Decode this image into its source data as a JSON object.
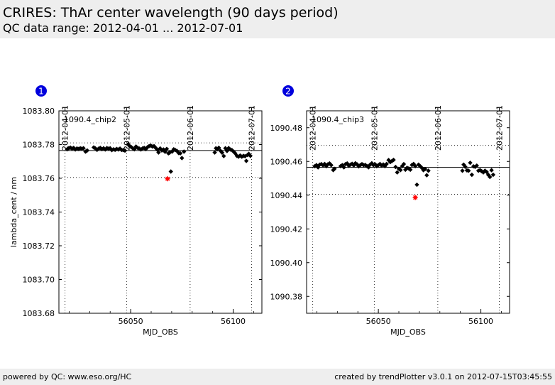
{
  "header": {
    "title": "CRIRES: ThAr center wavelength (90 days period)",
    "subtitle": "QC data range: 2012-04-01 ... 2012-07-01"
  },
  "footer": {
    "left": "powered by QC: www.eso.org/HC",
    "right": "created by trendPlotter v3.0.1 on 2012-07-15T03:45:55"
  },
  "colors": {
    "data_point": "#000000",
    "outlier": "#ff0000",
    "badge": "#0000dd",
    "badge_text": "#ffffff"
  },
  "chart_data": [
    {
      "type": "scatter",
      "badge": "1",
      "label": "1090.4_chip2",
      "xlabel": "MJD_OBS",
      "ylabel": "lambda_cent / nm",
      "xlim": [
        56015,
        56114
      ],
      "ylim": [
        1083.68,
        1083.8
      ],
      "x_ticks": [
        56050,
        56100
      ],
      "y_ticks": [
        1083.68,
        1083.7,
        1083.72,
        1083.74,
        1083.76,
        1083.78,
        1083.8
      ],
      "y_tick_labels": [
        "1083.68",
        "1083.70",
        "1083.72",
        "1083.74",
        "1083.76",
        "1083.78",
        "1083.80"
      ],
      "date_ticks": [
        {
          "mjd": 56018,
          "label": "2012-04-01"
        },
        {
          "mjd": 56048,
          "label": "2012-05-01"
        },
        {
          "mjd": 56079,
          "label": "2012-06-01"
        },
        {
          "mjd": 56109,
          "label": "2012-07-01"
        }
      ],
      "reference_line": 1083.7765,
      "threshold_lines": [
        1083.781,
        1083.7605
      ],
      "outliers": [
        {
          "x": 56068.0,
          "y": 1083.7597
        }
      ],
      "points": [
        [
          56019.0,
          1083.7772
        ],
        [
          56019.8,
          1083.7778
        ],
        [
          56020.6,
          1083.7782
        ],
        [
          56021.4,
          1083.7776
        ],
        [
          56022.2,
          1083.778
        ],
        [
          56023.0,
          1083.7771
        ],
        [
          56023.8,
          1083.7777
        ],
        [
          56024.6,
          1083.7774
        ],
        [
          56025.4,
          1083.7778
        ],
        [
          56026.2,
          1083.7776
        ],
        [
          56027.0,
          1083.7778
        ],
        [
          56028.0,
          1083.7758
        ],
        [
          56028.8,
          1083.7765
        ],
        [
          56032.0,
          1083.7783
        ],
        [
          56032.8,
          1083.7777
        ],
        [
          56033.6,
          1083.7769
        ],
        [
          56034.4,
          1083.7776
        ],
        [
          56035.2,
          1083.778
        ],
        [
          56036.0,
          1083.7773
        ],
        [
          56036.8,
          1083.7778
        ],
        [
          56037.6,
          1083.7771
        ],
        [
          56038.4,
          1083.7779
        ],
        [
          56039.2,
          1083.7776
        ],
        [
          56040.0,
          1083.7778
        ],
        [
          56040.8,
          1083.7767
        ],
        [
          56041.6,
          1083.7772
        ],
        [
          56042.4,
          1083.7769
        ],
        [
          56043.2,
          1083.7774
        ],
        [
          56044.0,
          1083.7771
        ],
        [
          56044.8,
          1083.7776
        ],
        [
          56045.6,
          1083.7768
        ],
        [
          56046.4,
          1083.7767
        ],
        [
          56047.2,
          1083.7764
        ],
        [
          56048.8,
          1083.7802
        ],
        [
          56049.4,
          1083.7792
        ],
        [
          56050.2,
          1083.7786
        ],
        [
          56051.0,
          1083.7778
        ],
        [
          56051.8,
          1083.7772
        ],
        [
          56052.6,
          1083.7788
        ],
        [
          56053.4,
          1083.7781
        ],
        [
          56054.2,
          1083.7776
        ],
        [
          56055.0,
          1083.7771
        ],
        [
          56055.8,
          1083.7777
        ],
        [
          56056.6,
          1083.778
        ],
        [
          56057.4,
          1083.7773
        ],
        [
          56058.2,
          1083.7784
        ],
        [
          56059.0,
          1083.7791
        ],
        [
          56059.8,
          1083.7794
        ],
        [
          56060.6,
          1083.7788
        ],
        [
          56061.4,
          1083.7791
        ],
        [
          56062.2,
          1083.778
        ],
        [
          56063.0,
          1083.7769
        ],
        [
          56063.6,
          1083.7753
        ],
        [
          56064.4,
          1083.7777
        ],
        [
          56065.2,
          1083.7765
        ],
        [
          56066.0,
          1083.7771
        ],
        [
          56066.8,
          1083.7757
        ],
        [
          56067.6,
          1083.7774
        ],
        [
          56068.4,
          1083.7748
        ],
        [
          56069.0,
          1083.7752
        ],
        [
          56069.6,
          1083.764
        ],
        [
          56070.2,
          1083.7758
        ],
        [
          56071.0,
          1083.7772
        ],
        [
          56071.8,
          1083.7767
        ],
        [
          56072.6,
          1083.7762
        ],
        [
          56073.4,
          1083.775
        ],
        [
          56074.2,
          1083.7748
        ],
        [
          56075.0,
          1083.772
        ],
        [
          56076.0,
          1083.7758
        ],
        [
          56091.0,
          1083.7753
        ],
        [
          56091.6,
          1083.7778
        ],
        [
          56092.2,
          1083.7772
        ],
        [
          56093.0,
          1083.7781
        ],
        [
          56093.8,
          1083.7763
        ],
        [
          56094.6,
          1083.7752
        ],
        [
          56095.4,
          1083.7732
        ],
        [
          56096.2,
          1083.7778
        ],
        [
          56097.0,
          1083.7762
        ],
        [
          56097.8,
          1083.7779
        ],
        [
          56098.6,
          1083.7771
        ],
        [
          56099.4,
          1083.7767
        ],
        [
          56100.2,
          1083.7758
        ],
        [
          56101.0,
          1083.7748
        ],
        [
          56101.8,
          1083.7733
        ],
        [
          56102.6,
          1083.7728
        ],
        [
          56103.4,
          1083.7735
        ],
        [
          56104.2,
          1083.7728
        ],
        [
          56105.0,
          1083.7733
        ],
        [
          56105.8,
          1083.7731
        ],
        [
          56106.4,
          1083.7703
        ],
        [
          56107.0,
          1083.7738
        ],
        [
          56107.6,
          1083.7745
        ],
        [
          56108.4,
          1083.7733
        ]
      ]
    },
    {
      "type": "scatter",
      "badge": "2",
      "label": "1090.4_chip3",
      "xlabel": "MJD_OBS",
      "ylabel": "",
      "xlim": [
        56015,
        56114
      ],
      "ylim": [
        1090.37,
        1090.49
      ],
      "x_ticks": [
        56050,
        56100
      ],
      "y_ticks": [
        1090.38,
        1090.4,
        1090.42,
        1090.44,
        1090.46,
        1090.48
      ],
      "y_tick_labels": [
        "1090.38",
        "1090.40",
        "1090.42",
        "1090.44",
        "1090.46",
        "1090.48"
      ],
      "date_ticks": [
        {
          "mjd": 56018,
          "label": "2012-04-01"
        },
        {
          "mjd": 56048,
          "label": "2012-05-01"
        },
        {
          "mjd": 56079,
          "label": "2012-06-01"
        },
        {
          "mjd": 56109,
          "label": "2012-07-01"
        }
      ],
      "reference_line": 1090.4565,
      "threshold_lines": [
        1090.4695,
        1090.4405
      ],
      "outliers": [
        {
          "x": 56068.0,
          "y": 1090.4386
        }
      ],
      "points": [
        [
          56019.0,
          1090.4572
        ],
        [
          56019.8,
          1090.4578
        ],
        [
          56020.6,
          1090.4565
        ],
        [
          56021.4,
          1090.4581
        ],
        [
          56022.2,
          1090.4584
        ],
        [
          56023.0,
          1090.4577
        ],
        [
          56023.8,
          1090.4585
        ],
        [
          56024.6,
          1090.4572
        ],
        [
          56025.4,
          1090.4583
        ],
        [
          56026.2,
          1090.4588
        ],
        [
          56027.0,
          1090.4578
        ],
        [
          56028.0,
          1090.4549
        ],
        [
          56028.6,
          1090.4556
        ],
        [
          56031.6,
          1090.4572
        ],
        [
          56032.4,
          1090.4578
        ],
        [
          56033.2,
          1090.4565
        ],
        [
          56034.0,
          1090.4584
        ],
        [
          56034.8,
          1090.4588
        ],
        [
          56035.6,
          1090.4574
        ],
        [
          56036.4,
          1090.4581
        ],
        [
          56037.2,
          1090.4586
        ],
        [
          56038.0,
          1090.4576
        ],
        [
          56038.8,
          1090.4589
        ],
        [
          56039.6,
          1090.4583
        ],
        [
          56040.4,
          1090.4571
        ],
        [
          56041.2,
          1090.4578
        ],
        [
          56042.0,
          1090.4584
        ],
        [
          56042.8,
          1090.4578
        ],
        [
          56043.6,
          1090.4579
        ],
        [
          56044.4,
          1090.4573
        ],
        [
          56045.2,
          1090.4565
        ],
        [
          56046.0,
          1090.4581
        ],
        [
          56046.8,
          1090.4589
        ],
        [
          56047.6,
          1090.4578
        ],
        [
          56048.4,
          1090.4583
        ],
        [
          56049.2,
          1090.4572
        ],
        [
          56050.0,
          1090.4578
        ],
        [
          56050.8,
          1090.4585
        ],
        [
          56051.6,
          1090.4575
        ],
        [
          56052.4,
          1090.4582
        ],
        [
          56053.2,
          1090.4572
        ],
        [
          56054.0,
          1090.4585
        ],
        [
          56055.0,
          1090.4608
        ],
        [
          56055.8,
          1090.4596
        ],
        [
          56056.6,
          1090.4602
        ],
        [
          56057.4,
          1090.4609
        ],
        [
          56058.4,
          1090.4567
        ],
        [
          56059.2,
          1090.4535
        ],
        [
          56060.0,
          1090.4556
        ],
        [
          56060.8,
          1090.4549
        ],
        [
          56061.6,
          1090.4572
        ],
        [
          56062.4,
          1090.4584
        ],
        [
          56063.2,
          1090.4551
        ],
        [
          56064.0,
          1090.4562
        ],
        [
          56064.8,
          1090.4558
        ],
        [
          56065.6,
          1090.4551
        ],
        [
          56066.4,
          1090.4579
        ],
        [
          56067.2,
          1090.4585
        ],
        [
          56068.0,
          1090.4572
        ],
        [
          56068.8,
          1090.4462
        ],
        [
          56069.6,
          1090.4581
        ],
        [
          56070.4,
          1090.4572
        ],
        [
          56071.2,
          1090.4562
        ],
        [
          56072.0,
          1090.4548
        ],
        [
          56072.8,
          1090.4555
        ],
        [
          56073.6,
          1090.4518
        ],
        [
          56074.4,
          1090.4545
        ],
        [
          56091.0,
          1090.4545
        ],
        [
          56091.6,
          1090.4581
        ],
        [
          56092.4,
          1090.4568
        ],
        [
          56093.2,
          1090.4547
        ],
        [
          56094.0,
          1090.4545
        ],
        [
          56094.8,
          1090.4592
        ],
        [
          56095.6,
          1090.4521
        ],
        [
          56096.4,
          1090.4571
        ],
        [
          56097.2,
          1090.4568
        ],
        [
          56098.0,
          1090.4575
        ],
        [
          56098.8,
          1090.4545
        ],
        [
          56099.6,
          1090.4548
        ],
        [
          56100.4,
          1090.4542
        ],
        [
          56101.2,
          1090.4535
        ],
        [
          56102.0,
          1090.4545
        ],
        [
          56102.8,
          1090.4538
        ],
        [
          56103.6,
          1090.4521
        ],
        [
          56104.4,
          1090.4508
        ],
        [
          56105.2,
          1090.4548
        ],
        [
          56106.0,
          1090.4521
        ]
      ]
    }
  ]
}
